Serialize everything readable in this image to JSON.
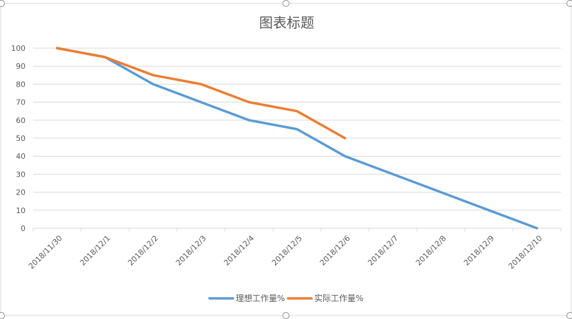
{
  "chart_data": {
    "type": "line",
    "title": "图表标题",
    "xlabel": "",
    "ylabel": "",
    "categories": [
      "2018/11/30",
      "2018/12/1",
      "2018/12/2",
      "2018/12/3",
      "2018/12/4",
      "2018/12/5",
      "2018/12/6",
      "2018/12/7",
      "2018/12/8",
      "2018/12/9",
      "2018/12/10"
    ],
    "ylim": [
      0,
      100
    ],
    "yticks": [
      0,
      10,
      20,
      30,
      40,
      50,
      60,
      70,
      80,
      90,
      100
    ],
    "grid": "horizontal",
    "legend_position": "bottom",
    "series": [
      {
        "name": "理想工作量%",
        "color": "#5B9BD5",
        "values": [
          100,
          95,
          80,
          70,
          60,
          55,
          40,
          30,
          20,
          10,
          0
        ]
      },
      {
        "name": "实际工作量%",
        "color": "#ED7D31",
        "values": [
          100,
          95,
          85,
          80,
          70,
          65,
          50,
          null,
          null,
          null,
          null
        ]
      }
    ]
  }
}
